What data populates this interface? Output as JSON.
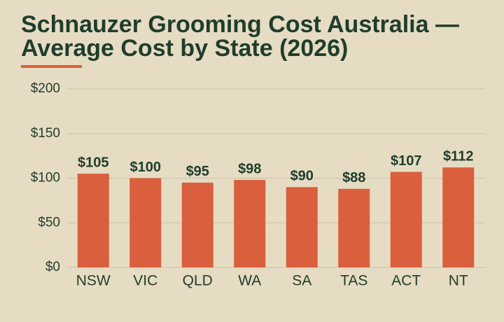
{
  "chart_data": {
    "type": "bar",
    "title": "Schnauzer Grooming Cost Australia — Average Cost by State (2026)",
    "categories": [
      "NSW",
      "VIC",
      "QLD",
      "WA",
      "SA",
      "TAS",
      "ACT",
      "NT"
    ],
    "values": [
      105,
      100,
      95,
      98,
      90,
      88,
      107,
      112
    ],
    "value_labels": [
      "$105",
      "$100",
      "$95",
      "$98",
      "$90",
      "$88",
      "$107",
      "$112"
    ],
    "color": "#d95f3d",
    "ylim": [
      0,
      200
    ],
    "yticks": [
      {
        "value": 0,
        "label": "$0"
      },
      {
        "value": 50,
        "label": "$50"
      },
      {
        "value": 100,
        "label": "$100"
      },
      {
        "value": 150,
        "label": "$150"
      },
      {
        "value": 200,
        "label": "$200"
      }
    ],
    "grid": true
  }
}
